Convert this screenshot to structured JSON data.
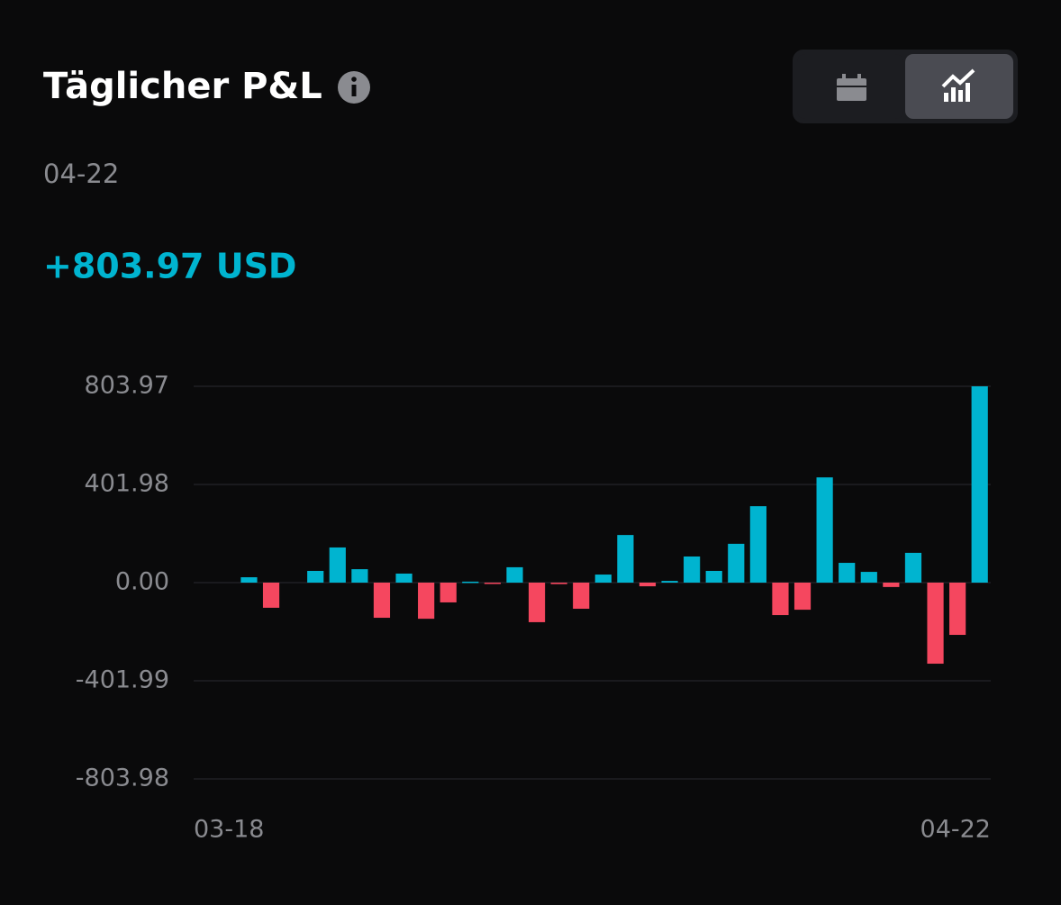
{
  "header": {
    "title": "Täglicher P&L",
    "date": "04-22",
    "value": "+803.97 USD"
  },
  "chart_data": {
    "type": "bar",
    "categories": [
      "03-18",
      null,
      null,
      null,
      null,
      null,
      null,
      null,
      null,
      null,
      null,
      null,
      null,
      null,
      null,
      null,
      null,
      null,
      null,
      null,
      null,
      null,
      null,
      null,
      null,
      null,
      null,
      null,
      null,
      null,
      null,
      null,
      null,
      null,
      null,
      "04-22"
    ],
    "values": [
      null,
      null,
      22,
      -103,
      null,
      48,
      144,
      55,
      -144,
      37,
      -148,
      -81,
      4,
      -4,
      63,
      -162,
      -6,
      -107,
      33,
      195,
      -15,
      7,
      107,
      48,
      159,
      313,
      -133,
      -111,
      431,
      81,
      44,
      -18,
      122,
      -332,
      -214,
      803.97
    ],
    "positive_color": "#00b4d0",
    "negative_color": "#f5475f",
    "ylim": [
      -803.98,
      803.97
    ],
    "yticks": [
      -803.98,
      -401.99,
      {
        "value": 0,
        "label": "0.00"
      },
      401.98,
      803.97
    ],
    "grid": true
  }
}
